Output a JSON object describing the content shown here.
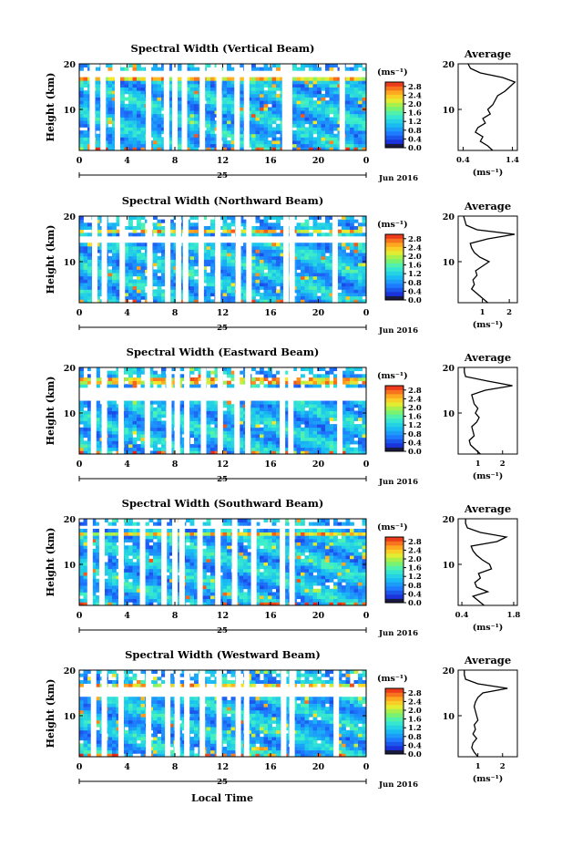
{
  "figure": {
    "xlabel": "Local Time",
    "ylabel": "Height (km)",
    "date_day": "25",
    "date_label": "Jun 2016",
    "avg_title": "Average",
    "unit_label": "(ms⁻¹)"
  },
  "chart_data": [
    {
      "type": "heatmap",
      "title": "Spectral Width (Vertical Beam)",
      "xlabel": "Local Time",
      "ylabel": "Height (km)",
      "x_ticks": [
        "0",
        "4",
        "8",
        "12",
        "16",
        "20",
        "0"
      ],
      "y_ticks": [
        "10",
        "20"
      ],
      "xlim": [
        0,
        24
      ],
      "ylim": [
        1,
        20
      ],
      "colorbar_ticks": [
        "0.0",
        "0.4",
        "0.8",
        "1.2",
        "1.6",
        "2.0",
        "2.4",
        "2.8"
      ],
      "colorbar_range": [
        0,
        3.0
      ],
      "gaps_hours": [
        1.1,
        2.0,
        3.2,
        5.8,
        7.3,
        8.0,
        8.8,
        10.3,
        11.7,
        13.2,
        14.0,
        17.2,
        17.6,
        22.0
      ],
      "missing_band_km": [
        17.2,
        18.3
      ],
      "peak_layer_km": [
        16.0,
        17.0
      ],
      "avg_profile": {
        "title": "Average",
        "x_ticks": [
          "0.4",
          "1.4"
        ],
        "xlim": [
          0.3,
          1.5
        ],
        "ylim": [
          1,
          20
        ],
        "height_km": [
          1,
          2,
          3,
          4,
          5,
          6,
          7,
          8,
          9,
          10,
          11,
          12,
          13,
          14,
          15,
          16,
          17,
          18,
          19,
          20
        ],
        "width": [
          1.0,
          0.9,
          0.75,
          0.8,
          0.65,
          0.7,
          0.85,
          0.8,
          0.95,
          0.9,
          1.0,
          1.05,
          1.1,
          1.25,
          1.35,
          1.45,
          1.2,
          0.75,
          0.55,
          0.5
        ]
      }
    },
    {
      "type": "heatmap",
      "title": "Spectral Width (Northward Beam)",
      "xlabel": "Local Time",
      "ylabel": "Height (km)",
      "x_ticks": [
        "0",
        "4",
        "8",
        "12",
        "16",
        "20",
        "0"
      ],
      "y_ticks": [
        "10",
        "20"
      ],
      "xlim": [
        0,
        24
      ],
      "ylim": [
        1,
        20
      ],
      "colorbar_ticks": [
        "0.0",
        "0.4",
        "0.8",
        "1.2",
        "1.6",
        "2.0",
        "2.4",
        "2.8"
      ],
      "colorbar_range": [
        0,
        3.0
      ],
      "gaps_hours": [
        1.3,
        2.1,
        3.6,
        5.9,
        7.4,
        8.3,
        8.9,
        10.2,
        11.6,
        13.3,
        14.2,
        17.3,
        17.8,
        21.4
      ],
      "missing_band_km": [
        13.8,
        15.6
      ],
      "peak_layer_km": [
        16.2,
        17.2
      ],
      "avg_profile": {
        "title": "Average",
        "x_ticks": [
          "1",
          "2"
        ],
        "xlim": [
          0.1,
          2.3
        ],
        "ylim": [
          1,
          20
        ],
        "height_km": [
          1,
          2,
          3,
          4,
          5,
          6,
          7,
          8,
          9,
          10,
          11,
          12,
          13,
          14,
          15,
          16,
          17,
          18,
          19,
          20
        ],
        "width": [
          1.2,
          1.0,
          0.8,
          0.6,
          0.7,
          0.65,
          0.8,
          0.75,
          1.0,
          1.25,
          0.9,
          0.7,
          0.6,
          0.55,
          1.2,
          2.2,
          0.8,
          0.4,
          0.35,
          0.3
        ]
      }
    },
    {
      "type": "heatmap",
      "title": "Spectral Width (Eastward Beam)",
      "xlabel": "Local Time",
      "ylabel": "Height (km)",
      "x_ticks": [
        "0",
        "4",
        "8",
        "12",
        "16",
        "20",
        "0"
      ],
      "y_ticks": [
        "10",
        "20"
      ],
      "xlim": [
        0,
        24
      ],
      "ylim": [
        1,
        20
      ],
      "colorbar_ticks": [
        "0.0",
        "0.4",
        "0.8",
        "1.2",
        "1.6",
        "2.0",
        "2.4",
        "2.8"
      ],
      "colorbar_range": [
        0,
        3.0
      ],
      "gaps_hours": [
        1.2,
        2.1,
        3.5,
        5.7,
        7.5,
        8.2,
        9.0,
        10.4,
        11.8,
        13.2,
        14.1,
        17.0,
        17.7,
        21.8
      ],
      "missing_band_km": [
        13.0,
        15.4
      ],
      "peak_layer_km": [
        16.5,
        17.5
      ],
      "avg_profile": {
        "title": "Average",
        "x_ticks": [
          "1",
          "2"
        ],
        "xlim": [
          0.2,
          2.6
        ],
        "ylim": [
          1,
          20
        ],
        "height_km": [
          1,
          2,
          3,
          4,
          5,
          6,
          7,
          8,
          9,
          10,
          11,
          12,
          13,
          14,
          15,
          16,
          17,
          18,
          19,
          20
        ],
        "width": [
          1.1,
          0.9,
          0.7,
          0.65,
          0.85,
          0.8,
          0.75,
          0.95,
          1.05,
          0.9,
          1.0,
          0.85,
          0.8,
          0.75,
          1.3,
          2.4,
          1.4,
          0.5,
          0.45,
          0.45
        ]
      }
    },
    {
      "type": "heatmap",
      "title": "Spectral Width (Southward Beam)",
      "xlabel": "Local Time",
      "ylabel": "Height (km)",
      "x_ticks": [
        "0",
        "4",
        "8",
        "12",
        "16",
        "20",
        "0"
      ],
      "y_ticks": [
        "10",
        "20"
      ],
      "xlim": [
        0,
        24
      ],
      "ylim": [
        1,
        20
      ],
      "colorbar_ticks": [
        "0.0",
        "0.4",
        "0.8",
        "1.2",
        "1.6",
        "2.0",
        "2.4",
        "2.8"
      ],
      "colorbar_range": [
        0,
        3.0
      ],
      "gaps_hours": [
        0.9,
        1.9,
        3.5,
        5.3,
        7.1,
        8.0,
        8.6,
        10.1,
        11.6,
        13.0,
        14.6,
        17.0,
        17.8
      ],
      "missing_band_km": [
        17.6,
        18.4
      ],
      "peak_layer_km": [
        16.0,
        17.2
      ],
      "avg_profile": {
        "title": "Average",
        "x_ticks": [
          "0.4",
          "1.8"
        ],
        "xlim": [
          0.3,
          1.9
        ],
        "ylim": [
          1,
          20
        ],
        "height_km": [
          1,
          2,
          3,
          4,
          5,
          6,
          7,
          8,
          9,
          10,
          11,
          12,
          13,
          14,
          15,
          16,
          17,
          18,
          19,
          20
        ],
        "width": [
          1.0,
          0.85,
          0.7,
          1.1,
          0.8,
          0.75,
          0.9,
          0.85,
          1.2,
          1.15,
          0.95,
          0.8,
          0.7,
          0.65,
          1.35,
          1.6,
          0.9,
          0.55,
          0.5,
          0.5
        ]
      }
    },
    {
      "type": "heatmap",
      "title": "Spectral Width (Westward Beam)",
      "xlabel": "Local Time",
      "ylabel": "Height (km)",
      "x_ticks": [
        "0",
        "4",
        "8",
        "12",
        "16",
        "20",
        "0"
      ],
      "y_ticks": [
        "10",
        "20"
      ],
      "xlim": [
        0,
        24
      ],
      "ylim": [
        1,
        20
      ],
      "colorbar_ticks": [
        "0.0",
        "0.4",
        "0.8",
        "1.2",
        "1.6",
        "2.0",
        "2.4",
        "2.8"
      ],
      "colorbar_range": [
        0,
        3.0
      ],
      "gaps_hours": [
        1.2,
        2.1,
        3.5,
        5.8,
        7.4,
        8.2,
        9.0,
        10.3,
        11.7,
        13.3,
        14.0,
        17.1,
        17.8,
        21.5
      ],
      "missing_band_km": [
        14.0,
        16.0
      ],
      "peak_layer_km": [
        16.2,
        17.2
      ],
      "avg_profile": {
        "title": "Average",
        "x_ticks": [
          "1",
          "2"
        ],
        "xlim": [
          0.2,
          2.6
        ],
        "ylim": [
          1,
          20
        ],
        "height_km": [
          1,
          2,
          3,
          4,
          5,
          6,
          7,
          8,
          9,
          10,
          11,
          12,
          13,
          14,
          15,
          16,
          17,
          18,
          19,
          20
        ],
        "width": [
          1.0,
          0.85,
          0.75,
          0.8,
          0.95,
          0.8,
          0.9,
          0.85,
          1.0,
          0.95,
          0.9,
          0.85,
          0.9,
          1.0,
          1.2,
          2.2,
          1.0,
          0.5,
          0.45,
          0.45
        ]
      }
    }
  ]
}
